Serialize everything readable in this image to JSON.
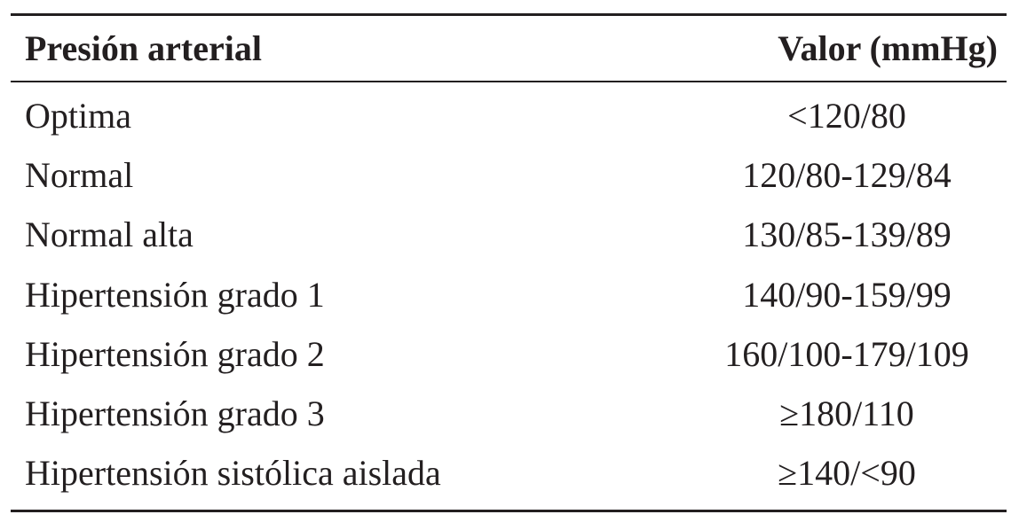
{
  "table": {
    "headers": {
      "label": "Presión arterial",
      "value": "Valor (mmHg)"
    },
    "rows": [
      {
        "label": "Optima",
        "value": "<120/80"
      },
      {
        "label": "Normal",
        "value": "120/80-129/84"
      },
      {
        "label": "Normal alta",
        "value": "130/85-139/89"
      },
      {
        "label": "Hipertensión  grado 1",
        "value": "140/90-159/99"
      },
      {
        "label": "Hipertensión  grado 2",
        "value": "160/100-179/109"
      },
      {
        "label": "Hipertensión  grado 3",
        "value": "≥180/110"
      },
      {
        "label": "Hipertensión sistólica aislada",
        "value": "≥140/<90"
      }
    ]
  }
}
